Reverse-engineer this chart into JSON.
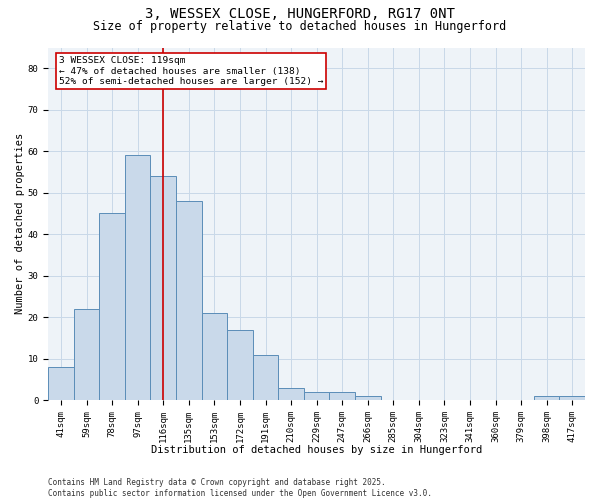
{
  "title_line1": "3, WESSEX CLOSE, HUNGERFORD, RG17 0NT",
  "title_line2": "Size of property relative to detached houses in Hungerford",
  "xlabel": "Distribution of detached houses by size in Hungerford",
  "ylabel": "Number of detached properties",
  "categories": [
    "41sqm",
    "59sqm",
    "78sqm",
    "97sqm",
    "116sqm",
    "135sqm",
    "153sqm",
    "172sqm",
    "191sqm",
    "210sqm",
    "229sqm",
    "247sqm",
    "266sqm",
    "285sqm",
    "304sqm",
    "323sqm",
    "341sqm",
    "360sqm",
    "379sqm",
    "398sqm",
    "417sqm"
  ],
  "values": [
    8,
    22,
    45,
    59,
    54,
    48,
    21,
    17,
    11,
    3,
    2,
    2,
    1,
    0,
    0,
    0,
    0,
    0,
    0,
    1,
    1
  ],
  "bar_color": "#c9d9ea",
  "bar_edge_color": "#5b8db8",
  "property_line_x": 4,
  "annotation_text": "3 WESSEX CLOSE: 119sqm\n← 47% of detached houses are smaller (138)\n52% of semi-detached houses are larger (152) →",
  "annotation_box_color": "#ffffff",
  "annotation_box_edge_color": "#cc0000",
  "vline_color": "#cc0000",
  "grid_color": "#c8d8e8",
  "background_color": "#eef3f8",
  "ylim": [
    0,
    85
  ],
  "yticks": [
    0,
    10,
    20,
    30,
    40,
    50,
    60,
    70,
    80
  ],
  "footer_text": "Contains HM Land Registry data © Crown copyright and database right 2025.\nContains public sector information licensed under the Open Government Licence v3.0.",
  "title_fontsize": 10,
  "subtitle_fontsize": 8.5,
  "axis_label_fontsize": 7.5,
  "tick_fontsize": 6.5,
  "annotation_fontsize": 6.8,
  "footer_fontsize": 5.5
}
